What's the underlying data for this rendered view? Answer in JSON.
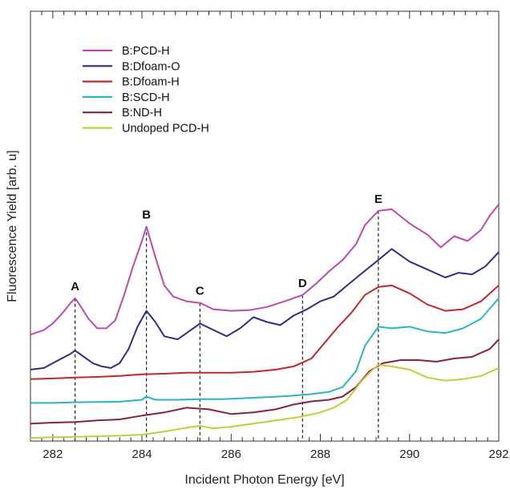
{
  "chart_data": {
    "type": "line",
    "xlabel": "Incident Photon Energy [eV]",
    "ylabel": "Fluorescence Yield [arb. u]",
    "xlim": [
      281.5,
      292
    ],
    "ylim": [
      0,
      10
    ],
    "xticks": [
      282,
      284,
      286,
      288,
      290,
      292
    ],
    "x_minor_step": 0.25,
    "y_ticks_shown": false,
    "grid": false,
    "legend_position": "top-left",
    "markers": [
      {
        "label": "A",
        "x": 282.5
      },
      {
        "label": "B",
        "x": 284.1
      },
      {
        "label": "C",
        "x": 285.3
      },
      {
        "label": "D",
        "x": 287.6
      },
      {
        "label": "E",
        "x": 289.3
      }
    ],
    "series": [
      {
        "name": "B:PCD-H",
        "color": "#bf4aab",
        "x": [
          281.5,
          281.8,
          282.0,
          282.2,
          282.4,
          282.5,
          282.6,
          282.8,
          283.0,
          283.2,
          283.4,
          283.6,
          283.8,
          284.0,
          284.1,
          284.3,
          284.5,
          284.7,
          285.0,
          285.3,
          285.6,
          286.0,
          286.4,
          286.8,
          287.2,
          287.6,
          287.9,
          288.2,
          288.5,
          288.8,
          289.0,
          289.3,
          289.6,
          290.0,
          290.4,
          290.7,
          291.0,
          291.3,
          291.6,
          291.8,
          292.0
        ],
        "y": [
          3.25,
          3.4,
          3.6,
          3.9,
          4.25,
          4.4,
          4.2,
          3.75,
          3.45,
          3.45,
          3.7,
          4.5,
          5.4,
          6.2,
          6.65,
          5.7,
          4.8,
          4.45,
          4.3,
          4.25,
          4.05,
          4.0,
          4.02,
          4.12,
          4.3,
          4.5,
          4.85,
          5.25,
          5.6,
          6.1,
          6.7,
          7.15,
          7.2,
          6.75,
          6.4,
          6.0,
          6.35,
          6.2,
          6.55,
          7.0,
          7.35
        ]
      },
      {
        "name": "B:Dfoam-O",
        "color": "#2e2f7e",
        "x": [
          281.5,
          281.8,
          282.0,
          282.2,
          282.4,
          282.5,
          282.7,
          282.9,
          283.1,
          283.3,
          283.5,
          283.7,
          283.9,
          284.1,
          284.3,
          284.5,
          284.8,
          285.0,
          285.3,
          285.6,
          285.9,
          286.2,
          286.5,
          286.8,
          287.1,
          287.4,
          287.7,
          288.0,
          288.3,
          288.6,
          288.9,
          289.3,
          289.6,
          290.0,
          290.4,
          290.8,
          291.1,
          291.4,
          291.7,
          292.0
        ],
        "y": [
          2.15,
          2.2,
          2.35,
          2.5,
          2.65,
          2.75,
          2.55,
          2.35,
          2.25,
          2.2,
          2.35,
          2.8,
          3.5,
          4.0,
          3.65,
          3.2,
          3.1,
          3.3,
          3.6,
          3.4,
          3.2,
          3.45,
          3.8,
          3.65,
          3.55,
          3.85,
          4.05,
          4.3,
          4.45,
          4.8,
          5.15,
          5.6,
          5.95,
          5.55,
          5.3,
          5.05,
          5.2,
          5.15,
          5.4,
          5.85
        ]
      },
      {
        "name": "B:Dfoam-H",
        "color": "#c0282d",
        "x": [
          281.5,
          282.0,
          282.5,
          283.0,
          283.5,
          284.0,
          284.5,
          285.0,
          285.5,
          286.0,
          286.5,
          287.0,
          287.4,
          287.8,
          288.1,
          288.4,
          288.7,
          289.0,
          289.3,
          289.6,
          290.0,
          290.4,
          290.8,
          291.2,
          291.6,
          292.0
        ],
        "y": [
          1.85,
          1.87,
          1.9,
          1.92,
          1.95,
          2.0,
          2.02,
          2.05,
          2.05,
          2.05,
          2.08,
          2.15,
          2.25,
          2.5,
          3.0,
          3.5,
          3.95,
          4.5,
          4.75,
          4.8,
          4.55,
          4.2,
          4.0,
          4.05,
          4.3,
          4.8
        ]
      },
      {
        "name": "B:SCD-H",
        "color": "#29b6c0",
        "x": [
          281.5,
          282.0,
          282.5,
          283.0,
          283.5,
          284.0,
          284.1,
          284.3,
          284.8,
          285.3,
          285.8,
          286.3,
          286.8,
          287.3,
          287.8,
          288.2,
          288.5,
          288.8,
          289.0,
          289.3,
          289.6,
          290.0,
          290.4,
          290.8,
          291.2,
          291.6,
          292.0
        ],
        "y": [
          1.1,
          1.1,
          1.12,
          1.13,
          1.14,
          1.2,
          1.3,
          1.2,
          1.2,
          1.22,
          1.22,
          1.25,
          1.28,
          1.32,
          1.38,
          1.45,
          1.6,
          2.1,
          2.9,
          3.5,
          3.45,
          3.5,
          3.35,
          3.3,
          3.45,
          3.75,
          4.4
        ]
      },
      {
        "name": "B:ND-H",
        "color": "#86213f",
        "x": [
          281.5,
          282.0,
          282.5,
          283.0,
          283.5,
          284.0,
          284.5,
          285.0,
          285.5,
          286.0,
          286.5,
          287.0,
          287.4,
          287.8,
          288.2,
          288.5,
          288.8,
          289.1,
          289.4,
          289.8,
          290.2,
          290.6,
          291.0,
          291.4,
          291.8,
          292.0
        ],
        "y": [
          0.45,
          0.48,
          0.5,
          0.55,
          0.58,
          0.7,
          0.8,
          0.95,
          0.9,
          0.75,
          0.8,
          0.9,
          1.05,
          1.15,
          1.2,
          1.3,
          1.6,
          2.1,
          2.35,
          2.45,
          2.45,
          2.4,
          2.5,
          2.55,
          2.8,
          3.1
        ]
      },
      {
        "name": "Undoped PCD-H",
        "color": "#c5cc3a",
        "x": [
          281.5,
          282.0,
          282.5,
          283.0,
          283.5,
          284.0,
          284.5,
          285.0,
          285.3,
          285.6,
          286.0,
          286.5,
          287.0,
          287.5,
          288.0,
          288.3,
          288.6,
          288.9,
          289.1,
          289.3,
          289.6,
          290.0,
          290.4,
          290.8,
          291.2,
          291.6,
          292.0
        ],
        "y": [
          0.0,
          0.02,
          0.03,
          0.05,
          0.07,
          0.1,
          0.2,
          0.32,
          0.38,
          0.3,
          0.35,
          0.45,
          0.55,
          0.65,
          0.8,
          0.95,
          1.2,
          1.75,
          2.05,
          2.3,
          2.25,
          2.15,
          1.9,
          1.8,
          1.85,
          1.95,
          2.2
        ]
      }
    ]
  }
}
